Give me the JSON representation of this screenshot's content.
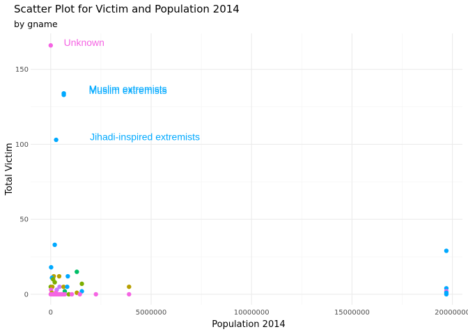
{
  "chart_data": {
    "type": "scatter",
    "title": "Scatter Plot for Victim and Population 2014",
    "subtitle": "by gname",
    "xlabel": "Population  2014",
    "ylabel": "Total Victim",
    "xlim": [
      -1000000,
      20500000
    ],
    "ylim": [
      -7,
      174
    ],
    "x_ticks": [
      0,
      5000000,
      10000000,
      15000000,
      20000000
    ],
    "x_tick_labels": [
      "0",
      "5000000",
      "10000000",
      "15000000",
      "20000000"
    ],
    "y_ticks": [
      0,
      50,
      100,
      150
    ],
    "y_tick_labels": [
      "0",
      "50",
      "100",
      "150"
    ],
    "grid": true,
    "legend": "none",
    "colors": {
      "pink": "#f564e3",
      "blue": "#00a9ff",
      "olive": "#b79f00",
      "green": "#7cae00",
      "teal": "#00be67",
      "purple": "#c77cff"
    },
    "points": [
      {
        "x": 0,
        "y": 166,
        "color": "pink"
      },
      {
        "x": 650000,
        "y": 134,
        "color": "blue"
      },
      {
        "x": 650000,
        "y": 133,
        "color": "blue"
      },
      {
        "x": 270000,
        "y": 103,
        "color": "blue"
      },
      {
        "x": 200000,
        "y": 33,
        "color": "blue"
      },
      {
        "x": 20000,
        "y": 18,
        "color": "blue"
      },
      {
        "x": 1300000,
        "y": 15,
        "color": "teal"
      },
      {
        "x": 420000,
        "y": 12,
        "color": "olive"
      },
      {
        "x": 850000,
        "y": 12,
        "color": "blue"
      },
      {
        "x": 150000,
        "y": 12,
        "color": "olive"
      },
      {
        "x": 60000,
        "y": 11,
        "color": "blue"
      },
      {
        "x": 120000,
        "y": 10,
        "color": "green"
      },
      {
        "x": 200000,
        "y": 8,
        "color": "green"
      },
      {
        "x": 1550000,
        "y": 7,
        "color": "green"
      },
      {
        "x": 3900000,
        "y": 5,
        "color": "olive"
      },
      {
        "x": 0,
        "y": 5,
        "color": "green"
      },
      {
        "x": 80000,
        "y": 5,
        "color": "olive"
      },
      {
        "x": 440000,
        "y": 5,
        "color": "purple"
      },
      {
        "x": 640000,
        "y": 5,
        "color": "olive"
      },
      {
        "x": 820000,
        "y": 5,
        "color": "blue"
      },
      {
        "x": 300000,
        "y": 3,
        "color": "purple"
      },
      {
        "x": 20000,
        "y": 3,
        "color": "pink"
      },
      {
        "x": 700000,
        "y": 2,
        "color": "teal"
      },
      {
        "x": 1550000,
        "y": 2,
        "color": "blue"
      },
      {
        "x": 50000,
        "y": 1,
        "color": "olive"
      },
      {
        "x": 250000,
        "y": 1,
        "color": "pink"
      },
      {
        "x": 1300000,
        "y": 1,
        "color": "olive"
      },
      {
        "x": 0,
        "y": 0,
        "color": "pink"
      },
      {
        "x": 60000,
        "y": 0,
        "color": "pink"
      },
      {
        "x": 120000,
        "y": 0,
        "color": "pink"
      },
      {
        "x": 180000,
        "y": 0,
        "color": "pink"
      },
      {
        "x": 240000,
        "y": 0,
        "color": "pink"
      },
      {
        "x": 300000,
        "y": 0,
        "color": "pink"
      },
      {
        "x": 360000,
        "y": 0,
        "color": "pink"
      },
      {
        "x": 420000,
        "y": 0,
        "color": "pink"
      },
      {
        "x": 480000,
        "y": 0,
        "color": "pink"
      },
      {
        "x": 550000,
        "y": 0,
        "color": "pink"
      },
      {
        "x": 620000,
        "y": 0,
        "color": "pink"
      },
      {
        "x": 700000,
        "y": 0,
        "color": "pink"
      },
      {
        "x": 900000,
        "y": 0,
        "color": "green"
      },
      {
        "x": 1050000,
        "y": 0,
        "color": "pink"
      },
      {
        "x": 1450000,
        "y": 0,
        "color": "pink"
      },
      {
        "x": 2250000,
        "y": 0,
        "color": "pink"
      },
      {
        "x": 3900000,
        "y": 0,
        "color": "pink"
      },
      {
        "x": 19700000,
        "y": 29,
        "color": "blue"
      },
      {
        "x": 19700000,
        "y": 4,
        "color": "blue"
      },
      {
        "x": 19700000,
        "y": 2,
        "color": "pink"
      },
      {
        "x": 19700000,
        "y": 1,
        "color": "blue"
      },
      {
        "x": 19700000,
        "y": 0,
        "color": "blue"
      }
    ],
    "annotations": [
      {
        "text": "Unknown",
        "x": 650000,
        "y": 168,
        "color": "pink"
      },
      {
        "text": "Muslim extremists",
        "x": 1900000,
        "y": 137,
        "color": "blue"
      },
      {
        "text": "Muslim extremists",
        "x": 1900000,
        "y": 136,
        "color": "blue"
      },
      {
        "text": "Jihadi-inspired extremists",
        "x": 1950000,
        "y": 105,
        "color": "blue"
      }
    ]
  }
}
